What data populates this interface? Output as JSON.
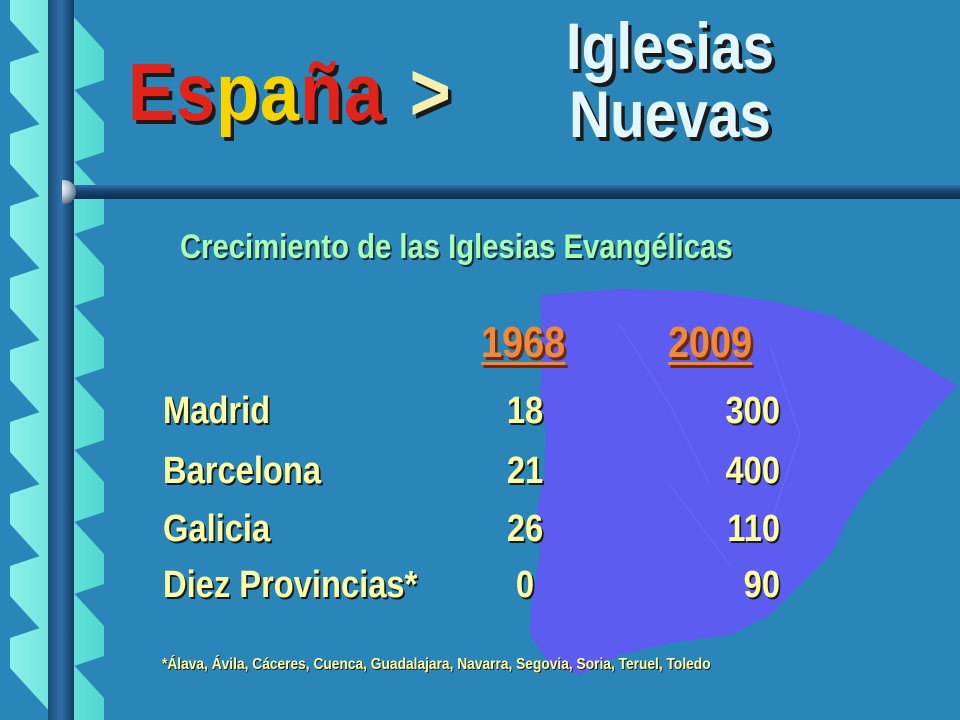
{
  "title": {
    "part1": "Es",
    "part2": "pa",
    "part3": "ña",
    "separator": ">",
    "subtitle_line1": "Iglesias",
    "subtitle_line2": "Nuevas"
  },
  "heading": "Crecimiento de las Iglesias Evangélicas",
  "columns": {
    "year1": "1968",
    "year2": "2009"
  },
  "rows": [
    {
      "label": "Madrid",
      "v1968": "18",
      "v2009": "300"
    },
    {
      "label": "Barcelona",
      "v1968": "21",
      "v2009": "400"
    },
    {
      "label": "Galicia",
      "v1968": "26",
      "v2009": "110"
    },
    {
      "label": "Diez Provincias*",
      "v1968": "0",
      "v2009": "90"
    }
  ],
  "footnote": "*Álava, Ávila, Cáceres, Cuenca, Guadalajara, Navarra, Segovia, Soria, Teruel, Toledo",
  "colors": {
    "background": "#2a86b8",
    "map": "#5c5cf0",
    "title_red": "#e0241a",
    "title_yellow": "#f5d400",
    "heading_green": "#a8ffb4",
    "years_orange": "#f08a3a",
    "row_text": "#fdfda6"
  }
}
